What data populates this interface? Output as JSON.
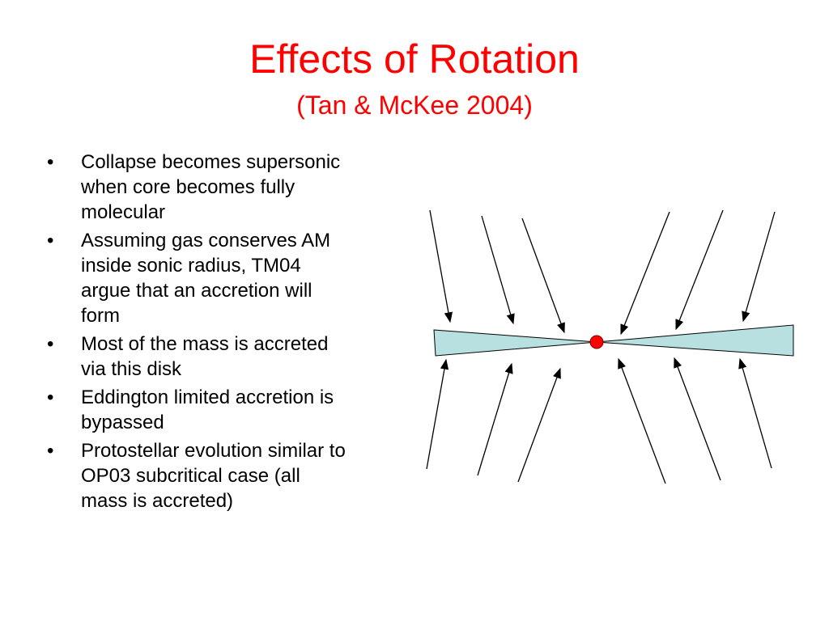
{
  "title": "Effects of Rotation",
  "subtitle": "(Tan & McKee 2004)",
  "bullets": [
    [
      "Collapse becomes supersonic",
      "when core becomes fully",
      "molecular"
    ],
    [
      "Assuming gas conserves AM",
      "inside sonic radius, TM04",
      "argue that an accretion will",
      "form"
    ],
    [
      "Most of the mass is accreted",
      "via this disk"
    ],
    [
      "Eddington limited accretion is",
      "bypassed"
    ],
    [
      "Protostellar evolution similar to",
      "OP03 subcritical case (all",
      "mass is accreted)"
    ]
  ]
}
